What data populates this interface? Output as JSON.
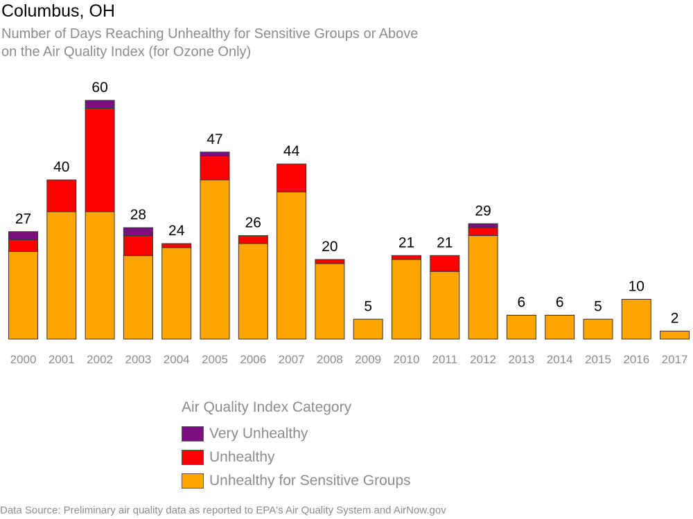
{
  "title": "Columbus, OH",
  "subtitle": [
    "Number of Days Reaching Unhealthy for Sensitive Groups or Above",
    "on the Air Quality Index (for Ozone Only)"
  ],
  "legend": {
    "title": "Air Quality Index Category",
    "items": [
      {
        "label": "Very Unhealthy",
        "color": "#7b0f7f"
      },
      {
        "label": "Unhealthy",
        "color": "#ff0000"
      },
      {
        "label": "Unhealthy for Sensitive Groups",
        "color": "#ffa500"
      }
    ]
  },
  "source": "Data Source: Preliminary air quality data as reported to EPA's Air Quality System and AirNow.gov",
  "chart_data": {
    "type": "bar",
    "stacked": true,
    "categories": [
      "2000",
      "2001",
      "2002",
      "2003",
      "2004",
      "2005",
      "2006",
      "2007",
      "2008",
      "2009",
      "2010",
      "2011",
      "2012",
      "2013",
      "2014",
      "2015",
      "2016",
      "2017"
    ],
    "series": [
      {
        "name": "Unhealthy for Sensitive Groups",
        "color": "#ffa500",
        "values": [
          22,
          32,
          32,
          21,
          23,
          40,
          24,
          37,
          19,
          5,
          20,
          17,
          26,
          6,
          6,
          5,
          10,
          2
        ]
      },
      {
        "name": "Unhealthy",
        "color": "#ff0000",
        "values": [
          3,
          8,
          26,
          5,
          1,
          6,
          2,
          7,
          1,
          0,
          1,
          4,
          2,
          0,
          0,
          0,
          0,
          0
        ]
      },
      {
        "name": "Very Unhealthy",
        "color": "#7b0f7f",
        "values": [
          2,
          0,
          2,
          2,
          0,
          1,
          0,
          0,
          0,
          0,
          0,
          0,
          1,
          0,
          0,
          0,
          0,
          0
        ]
      }
    ],
    "totals": [
      27,
      40,
      60,
      28,
      24,
      47,
      26,
      44,
      20,
      5,
      21,
      21,
      29,
      6,
      6,
      5,
      10,
      2
    ],
    "ylim": [
      0,
      60
    ],
    "grid": false,
    "legend_position": "bottom"
  }
}
